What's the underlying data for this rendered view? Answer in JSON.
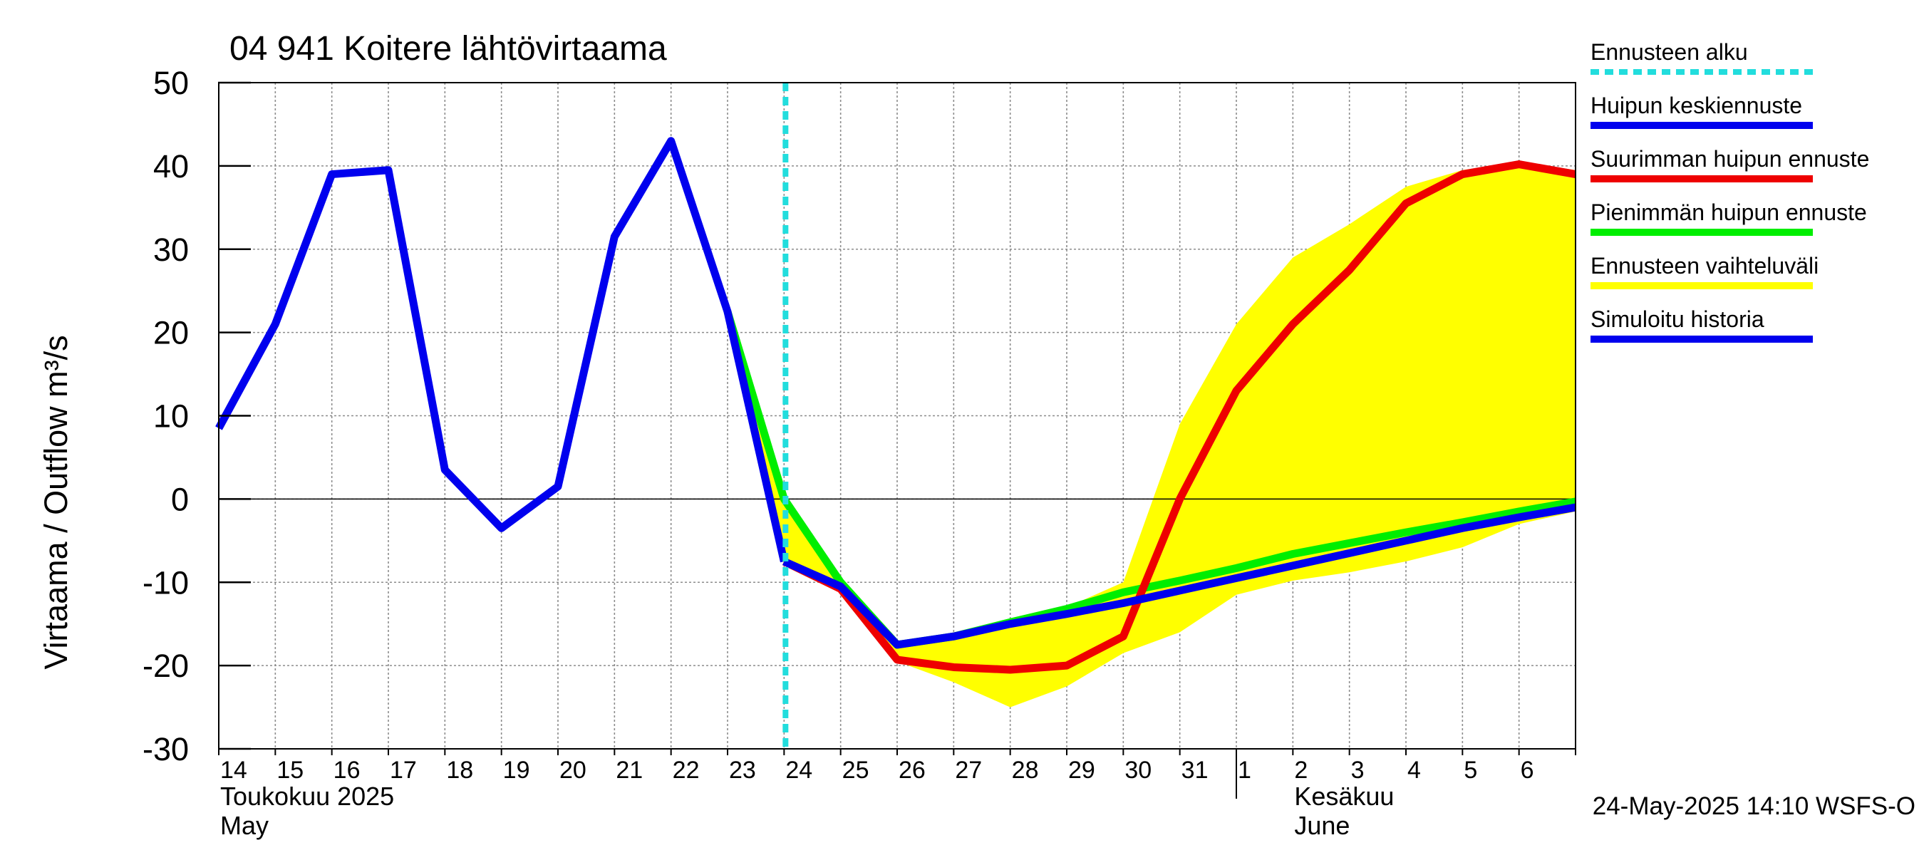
{
  "chart_data": {
    "type": "line",
    "title": "04 941 Koitere lähtövirtaama",
    "ylabel": "Virtaama / Outflow    m³/s",
    "ylim": [
      -30,
      50
    ],
    "yticks": [
      50,
      40,
      30,
      20,
      10,
      0,
      -10,
      -20,
      -30
    ],
    "xlim": [
      0,
      24
    ],
    "x_tick_labels": [
      {
        "x": 0,
        "label": "14"
      },
      {
        "x": 1,
        "label": "15"
      },
      {
        "x": 2,
        "label": "16"
      },
      {
        "x": 3,
        "label": "17"
      },
      {
        "x": 4,
        "label": "18"
      },
      {
        "x": 5,
        "label": "19"
      },
      {
        "x": 6,
        "label": "20"
      },
      {
        "x": 7,
        "label": "21"
      },
      {
        "x": 8,
        "label": "22"
      },
      {
        "x": 9,
        "label": "23"
      },
      {
        "x": 10,
        "label": "24"
      },
      {
        "x": 11,
        "label": "25"
      },
      {
        "x": 12,
        "label": "26"
      },
      {
        "x": 13,
        "label": "27"
      },
      {
        "x": 14,
        "label": "28"
      },
      {
        "x": 15,
        "label": "29"
      },
      {
        "x": 16,
        "label": "30"
      },
      {
        "x": 17,
        "label": "31"
      },
      {
        "x": 18,
        "label": "1"
      },
      {
        "x": 19,
        "label": "2"
      },
      {
        "x": 20,
        "label": "3"
      },
      {
        "x": 21,
        "label": "4"
      },
      {
        "x": 22,
        "label": "5"
      },
      {
        "x": 23,
        "label": "6"
      }
    ],
    "month_labels": [
      {
        "x": 0,
        "line1": "Toukokuu  2025",
        "line2": "May"
      },
      {
        "x": 19,
        "line1": "Kesäkuu",
        "line2": "June"
      }
    ],
    "month_divider_x": 18,
    "forecast_start_x": 10,
    "grid": true,
    "legend_position": "right",
    "legend": [
      {
        "label": "Ennusteen alku",
        "color": "#22dddd",
        "style": "dashed"
      },
      {
        "label": "Huipun keskiennuste",
        "color": "#0000ee",
        "style": "solid"
      },
      {
        "label": "Suurimman huipun ennuste",
        "color": "#ee0000",
        "style": "solid"
      },
      {
        "label": "Pienimmän huipun ennuste",
        "color": "#00ee00",
        "style": "solid"
      },
      {
        "label": "Ennusteen vaihteluväli",
        "color": "#ffff00",
        "style": "solid"
      },
      {
        "label": "Simuloitu historia",
        "color": "#0000ee",
        "style": "solid"
      }
    ],
    "band": {
      "name": "Ennusteen vaihteluväli",
      "color": "#ffff00",
      "upper": [
        [
          9,
          22.5
        ],
        [
          10,
          0
        ],
        [
          11,
          -10
        ],
        [
          12,
          -17.5
        ],
        [
          13,
          -16.5
        ],
        [
          14,
          -14.5
        ],
        [
          15,
          -13
        ],
        [
          16,
          -10
        ],
        [
          17,
          9
        ],
        [
          18,
          21
        ],
        [
          19,
          29
        ],
        [
          20,
          33
        ],
        [
          21,
          37.5
        ],
        [
          22,
          39.5
        ],
        [
          23,
          40.5
        ],
        [
          24,
          39.5
        ]
      ],
      "lower": [
        [
          24,
          -1.5
        ],
        [
          23,
          -3
        ],
        [
          22,
          -5.8
        ],
        [
          21,
          -7.5
        ],
        [
          20,
          -8.8
        ],
        [
          19,
          -9.8
        ],
        [
          18,
          -11.5
        ],
        [
          17,
          -16
        ],
        [
          16,
          -18.5
        ],
        [
          15,
          -22.5
        ],
        [
          14,
          -25
        ],
        [
          13,
          -22
        ],
        [
          12,
          -19.5
        ],
        [
          11,
          -11
        ],
        [
          10,
          -8
        ],
        [
          9,
          22.5
        ]
      ]
    },
    "series": [
      {
        "name": "Pienimmän huipun ennuste",
        "color": "#00ee00",
        "points": [
          [
            9,
            22.5
          ],
          [
            10,
            0
          ],
          [
            11,
            -10
          ],
          [
            12,
            -17.5
          ],
          [
            13,
            -16.5
          ],
          [
            14,
            -14.8
          ],
          [
            15,
            -13.2
          ],
          [
            16,
            -11.2
          ],
          [
            17,
            -9.8
          ],
          [
            18,
            -8.3
          ],
          [
            19,
            -6.6
          ],
          [
            20,
            -5.3
          ],
          [
            21,
            -4
          ],
          [
            22,
            -2.8
          ],
          [
            23,
            -1.5
          ],
          [
            24,
            -0.3
          ]
        ]
      },
      {
        "name": "Suurimman huipun ennuste",
        "color": "#ee0000",
        "points": [
          [
            10,
            -7.5
          ],
          [
            11,
            -10.8
          ],
          [
            12,
            -19.3
          ],
          [
            13,
            -20.2
          ],
          [
            14,
            -20.5
          ],
          [
            15,
            -20
          ],
          [
            16,
            -16.5
          ],
          [
            17,
            0
          ],
          [
            18,
            13
          ],
          [
            19,
            21
          ],
          [
            20,
            27.5
          ],
          [
            21,
            35.5
          ],
          [
            22,
            39
          ],
          [
            23,
            40.2
          ],
          [
            24,
            39
          ]
        ]
      },
      {
        "name": "Simuloitu historia",
        "color": "#0000ee",
        "points": [
          [
            0,
            8.5
          ],
          [
            1,
            21
          ],
          [
            2,
            39
          ],
          [
            3,
            39.5
          ],
          [
            4,
            3.5
          ],
          [
            5,
            -3.5
          ],
          [
            6,
            1.5
          ],
          [
            7,
            31.5
          ],
          [
            8,
            43
          ],
          [
            9,
            22.5
          ],
          [
            10,
            -7.5
          ]
        ]
      },
      {
        "name": "Huipun keskiennuste",
        "color": "#0000ee",
        "points": [
          [
            10,
            -7.5
          ],
          [
            11,
            -10.5
          ],
          [
            12,
            -17.5
          ],
          [
            13,
            -16.5
          ],
          [
            14,
            -15
          ],
          [
            15,
            -13.8
          ],
          [
            16,
            -12.5
          ],
          [
            17,
            -11
          ],
          [
            18,
            -9.5
          ],
          [
            19,
            -8
          ],
          [
            20,
            -6.5
          ],
          [
            21,
            -5
          ],
          [
            22,
            -3.5
          ],
          [
            23,
            -2.2
          ],
          [
            24,
            -1
          ]
        ]
      }
    ],
    "footer": "24-May-2025 14:10 WSFS-O"
  }
}
